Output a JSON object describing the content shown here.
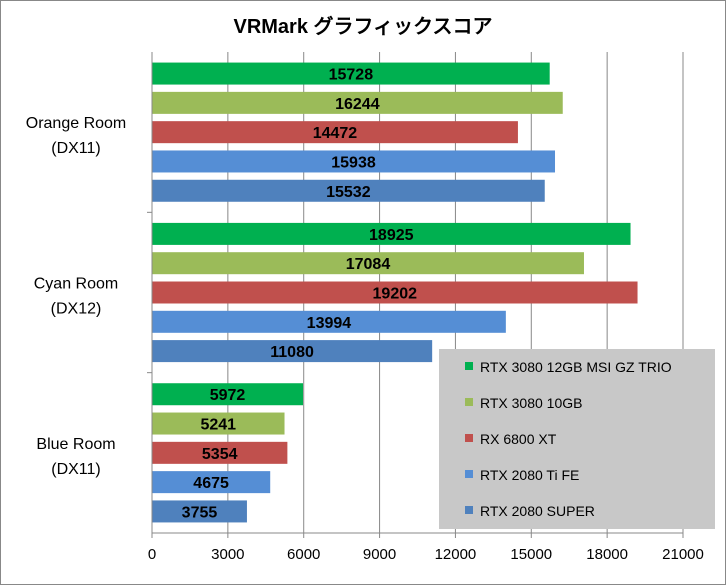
{
  "chart_data": {
    "type": "bar",
    "orientation": "horizontal",
    "title": "VRMark グラフィックスコア",
    "xlabel": "",
    "ylabel": "",
    "categories": [
      {
        "line1": "Orange Room",
        "line2": "(DX11)"
      },
      {
        "line1": "Cyan Room",
        "line2": "(DX12)"
      },
      {
        "line1": "Blue Room",
        "line2": "(DX11)"
      }
    ],
    "series": [
      {
        "name": "RTX 3080 12GB MSI GZ TRIO",
        "color": "#00b050",
        "values": [
          15728,
          18925,
          5972
        ]
      },
      {
        "name": "RTX 3080 10GB",
        "color": "#9bbb59",
        "values": [
          16244,
          17084,
          5241
        ]
      },
      {
        "name": "RX 6800 XT",
        "color": "#c0504d",
        "values": [
          14472,
          19202,
          5354
        ]
      },
      {
        "name": "RTX 2080 Ti FE",
        "color": "#558ed5",
        "values": [
          15938,
          13994,
          4675
        ]
      },
      {
        "name": "RTX 2080 SUPER",
        "color": "#4f81bd",
        "values": [
          15532,
          11080,
          3755
        ]
      }
    ],
    "xlim": [
      0,
      21000
    ],
    "xticks": [
      0,
      3000,
      6000,
      9000,
      12000,
      15000,
      18000,
      21000
    ],
    "grid": true,
    "legend_position": "bottom-right",
    "legend_background": "#c8c8c8"
  }
}
